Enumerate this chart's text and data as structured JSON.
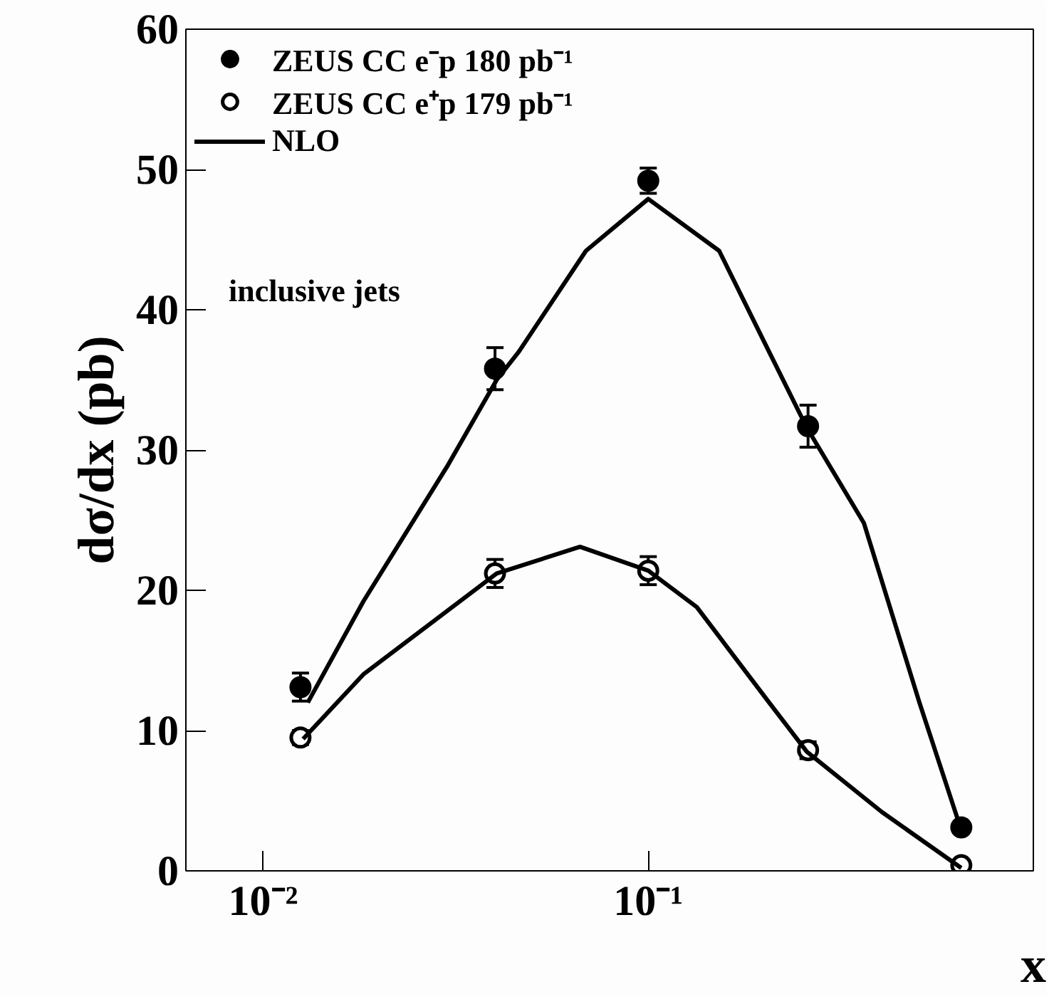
{
  "chart_data": {
    "type": "scatter",
    "xlabel": "x",
    "ylabel": "dσ/dx (pb)",
    "annotations": [
      "inclusive jets"
    ],
    "xlim": [
      0.0063,
      1.0
    ],
    "ylim": [
      0,
      60
    ],
    "xticks": [
      {
        "value": 0.01,
        "label": "10⁻²"
      },
      {
        "value": 0.1,
        "label": "10⁻¹"
      }
    ],
    "yticks": [
      0,
      10,
      20,
      30,
      40,
      50,
      60
    ],
    "log": "x",
    "grid": false,
    "legend": "top left",
    "series": [
      {
        "name": "ZEUS CC e⁻p 180 pb⁻¹",
        "marker": "circle",
        "color": "#000000",
        "x": [
          0.0125,
          0.04,
          0.1,
          0.26,
          0.65
        ],
        "values": [
          13.1,
          35.8,
          49.2,
          31.7,
          3.1
        ],
        "errors": [
          1,
          1.5,
          0.9,
          1.5,
          null
        ]
      },
      {
        "name": "ZEUS CC e⁺p 179 pb⁻¹",
        "marker": "circle",
        "color": "#ffffff",
        "x": [
          0.0125,
          0.04,
          0.1,
          0.26,
          0.65
        ],
        "values": [
          9.5,
          21.2,
          21.4,
          8.6,
          0.4
        ],
        "errors": [
          0.5,
          1,
          1,
          0.6,
          null
        ]
      },
      {
        "name": "NLO",
        "type": "line",
        "color": "#000000",
        "line_style": "solid",
        "x": [
          0.01306,
          0.0182,
          0.03,
          0.0404,
          0.0461,
          0.0689,
          0.1,
          0.1528,
          0.206,
          0.258,
          0.363,
          0.506,
          0.65
        ],
        "values": [
          12,
          19.2,
          28.8,
          35,
          37,
          44.2,
          47.9,
          44.2,
          37,
          31.6,
          24.8,
          12,
          2.9
        ]
      },
      {
        "type": "line",
        "color": "#000000",
        "line_style": "solid",
        "x": [
          0.0127,
          0.0182,
          0.0404,
          0.0665,
          0.1,
          0.1337,
          0.206,
          0.258,
          0.404,
          0.65
        ],
        "values": [
          9.4,
          14,
          21.2,
          23.1,
          21.4,
          18.8,
          12,
          8.5,
          4.2,
          0.2
        ]
      }
    ]
  }
}
